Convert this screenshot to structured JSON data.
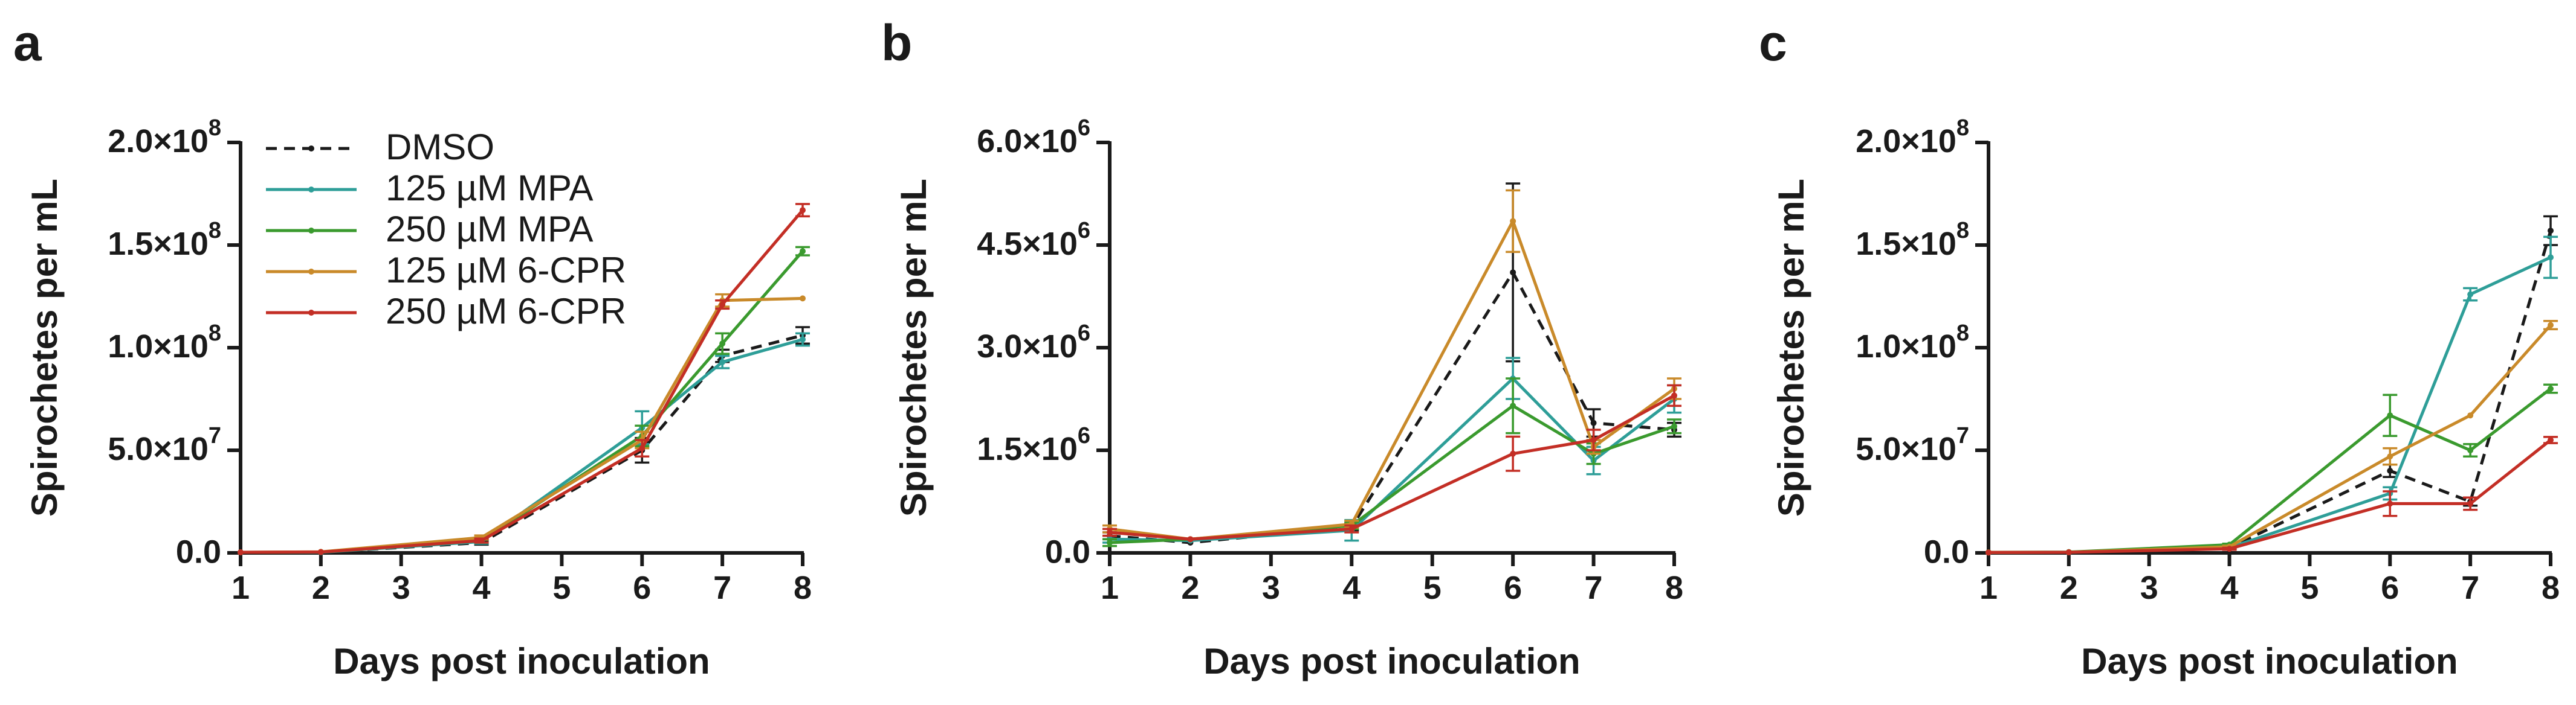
{
  "chart_data": [
    {
      "panel": "a",
      "type": "line",
      "xlabel": "Days post inoculation",
      "ylabel": "Spirochetes per mL",
      "x": [
        1,
        2,
        4,
        6,
        7,
        8
      ],
      "x_ticks": [
        "1",
        "2",
        "3",
        "4",
        "5",
        "6",
        "7",
        "8"
      ],
      "x_range": [
        1,
        8
      ],
      "ylim": [
        0,
        200000000
      ],
      "y_ticks": [
        0,
        50000000,
        100000000,
        150000000,
        200000000
      ],
      "y_tick_labels": [
        "0.0",
        "5.0×10^7",
        "1.0×10^8",
        "1.5×10^8",
        "2.0×10^8"
      ],
      "legend": "top-left",
      "series": [
        {
          "name": "DMSO",
          "color": "#1a1a1a",
          "dash": "dashed",
          "values": [
            200000,
            300000,
            5000000,
            50000000,
            96000000,
            106000000
          ],
          "errors": [
            0,
            0,
            1000000,
            6000000,
            3000000,
            4000000
          ]
        },
        {
          "name": "125 µM MPA",
          "color": "#2e9e98",
          "dash": "solid",
          "values": [
            300000,
            300000,
            5500000,
            61000000,
            93000000,
            104000000
          ],
          "errors": [
            0,
            0,
            1000000,
            8000000,
            3000000,
            3000000
          ]
        },
        {
          "name": "250 µM MPA",
          "color": "#3a9a2e",
          "dash": "solid",
          "values": [
            300000,
            400000,
            6000000,
            57000000,
            102000000,
            147000000
          ],
          "errors": [
            0,
            0,
            1000000,
            5000000,
            5000000,
            2000000
          ]
        },
        {
          "name": "125 µM 6-CPR",
          "color": "#c98a2a",
          "dash": "solid",
          "values": [
            300000,
            500000,
            7500000,
            55000000,
            123000000,
            124000000
          ],
          "errors": [
            0,
            0,
            1000000,
            4000000,
            3000000,
            0
          ]
        },
        {
          "name": "250 µM 6-CPR",
          "color": "#c32e25",
          "dash": "solid",
          "values": [
            300000,
            400000,
            6000000,
            51000000,
            121000000,
            167000000
          ],
          "errors": [
            0,
            0,
            1000000,
            4000000,
            2000000,
            3000000
          ]
        }
      ]
    },
    {
      "panel": "b",
      "type": "line",
      "xlabel": "Days post inoculation",
      "ylabel": "Spirochetes per mL",
      "x": [
        1,
        2,
        4,
        6,
        7,
        8
      ],
      "x_ticks": [
        "1",
        "2",
        "3",
        "4",
        "5",
        "6",
        "7",
        "8"
      ],
      "x_range": [
        1,
        8
      ],
      "ylim": [
        0,
        6000000
      ],
      "y_ticks": [
        0,
        1500000,
        3000000,
        4500000,
        6000000
      ],
      "y_tick_labels": [
        "0.0",
        "1.5×10^6",
        "3.0×10^6",
        "4.5×10^6",
        "6.0×10^6"
      ],
      "series": [
        {
          "name": "DMSO",
          "color": "#1a1a1a",
          "dash": "dashed",
          "values": [
            250000,
            150000,
            380000,
            4100000,
            1900000,
            1800000
          ],
          "errors": [
            50000,
            0,
            50000,
            1300000,
            200000,
            100000
          ]
        },
        {
          "name": "125 µM MPA",
          "color": "#2e9e98",
          "dash": "solid",
          "values": [
            200000,
            180000,
            330000,
            2550000,
            1350000,
            2250000
          ],
          "errors": [
            50000,
            0,
            150000,
            300000,
            200000,
            200000
          ]
        },
        {
          "name": "250 µM MPA",
          "color": "#3a9a2e",
          "dash": "solid",
          "values": [
            150000,
            200000,
            400000,
            2150000,
            1450000,
            1850000
          ],
          "errors": [
            50000,
            0,
            50000,
            400000,
            150000,
            100000
          ]
        },
        {
          "name": "125 µM 6-CPR",
          "color": "#c98a2a",
          "dash": "solid",
          "values": [
            350000,
            200000,
            420000,
            4850000,
            1550000,
            2400000
          ],
          "errors": [
            50000,
            0,
            50000,
            450000,
            100000,
            150000
          ]
        },
        {
          "name": "250 µM 6-CPR",
          "color": "#c32e25",
          "dash": "solid",
          "values": [
            300000,
            200000,
            350000,
            1450000,
            1650000,
            2300000
          ],
          "errors": [
            50000,
            0,
            50000,
            250000,
            150000,
            150000
          ]
        }
      ]
    },
    {
      "panel": "c",
      "type": "line",
      "xlabel": "Days post inoculation",
      "ylabel": "Spirochetes per mL",
      "x": [
        1,
        2,
        4,
        6,
        7,
        8
      ],
      "x_ticks": [
        "1",
        "2",
        "3",
        "4",
        "5",
        "6",
        "7",
        "8"
      ],
      "x_range": [
        1,
        8
      ],
      "ylim": [
        0,
        200000000
      ],
      "y_ticks": [
        0,
        50000000,
        100000000,
        150000000,
        200000000
      ],
      "y_tick_labels": [
        "0.0",
        "5.0×10^7",
        "1.0×10^8",
        "1.5×10^8",
        "2.0×10^8"
      ],
      "series": [
        {
          "name": "DMSO",
          "color": "#1a1a1a",
          "dash": "dashed",
          "values": [
            200000,
            300000,
            2500000,
            40000000,
            25000000,
            157000000
          ],
          "errors": [
            0,
            0,
            500000,
            3000000,
            2000000,
            7000000
          ]
        },
        {
          "name": "125 µM MPA",
          "color": "#2e9e98",
          "dash": "solid",
          "values": [
            200000,
            300000,
            2500000,
            29000000,
            126000000,
            144000000
          ],
          "errors": [
            0,
            0,
            500000,
            3000000,
            3000000,
            10000000
          ]
        },
        {
          "name": "250 µM MPA",
          "color": "#3a9a2e",
          "dash": "solid",
          "values": [
            300000,
            400000,
            4000000,
            67000000,
            50000000,
            80000000
          ],
          "errors": [
            0,
            0,
            500000,
            10000000,
            3000000,
            2000000
          ]
        },
        {
          "name": "125 µM 6-CPR",
          "color": "#c98a2a",
          "dash": "solid",
          "values": [
            200000,
            300000,
            3000000,
            47000000,
            67000000,
            111000000
          ],
          "errors": [
            0,
            0,
            500000,
            4000000,
            0,
            2000000
          ]
        },
        {
          "name": "250 µM 6-CPR",
          "color": "#c32e25",
          "dash": "solid",
          "values": [
            200000,
            300000,
            2000000,
            24000000,
            24000000,
            55000000
          ],
          "errors": [
            0,
            0,
            500000,
            6000000,
            3000000,
            1500000
          ]
        }
      ]
    }
  ]
}
